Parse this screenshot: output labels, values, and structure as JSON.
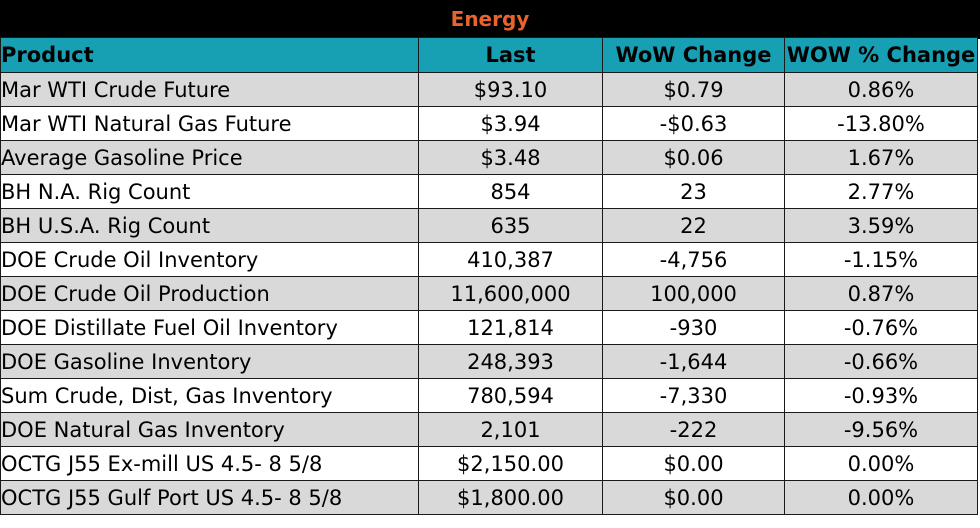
{
  "title": "Energy",
  "columns": [
    "Product",
    "Last",
    "WoW Change",
    "WOW % Change"
  ],
  "rows": [
    [
      "Mar WTI Crude Future",
      "$93.10",
      "$0.79",
      "0.86%"
    ],
    [
      "Mar WTI Natural Gas Future",
      "$3.94",
      "-$0.63",
      "-13.80%"
    ],
    [
      "Average Gasoline Price",
      "$3.48",
      "$0.06",
      "1.67%"
    ],
    [
      "BH N.A. Rig Count",
      "854",
      "23",
      "2.77%"
    ],
    [
      "BH U.S.A. Rig Count",
      "635",
      "22",
      "3.59%"
    ],
    [
      "DOE Crude Oil Inventory",
      "410,387",
      "-4,756",
      "-1.15%"
    ],
    [
      "DOE Crude Oil Production",
      "11,600,000",
      "100,000",
      "0.87%"
    ],
    [
      "DOE Distillate Fuel Oil Inventory",
      "121,814",
      "-930",
      "-0.76%"
    ],
    [
      "DOE Gasoline Inventory",
      "248,393",
      "-1,644",
      "-0.66%"
    ],
    [
      "Sum Crude, Dist, Gas Inventory",
      "780,594",
      "-7,330",
      "-0.93%"
    ],
    [
      "DOE Natural Gas Inventory",
      "2,101",
      "-222",
      "-9.56%"
    ],
    [
      "OCTG J55 Ex-mill US 4.5- 8 5/8",
      "$2,150.00",
      "$0.00",
      "0.00%"
    ],
    [
      "OCTG J55 Gulf Port US 4.5- 8 5/8",
      "$1,800.00",
      "$0.00",
      "0.00%"
    ]
  ],
  "colors": {
    "title_bg": "#000000",
    "title_text": "#e8642c",
    "header_bg": "#17a0b4",
    "odd_row_bg": "#d9d9d9",
    "even_row_bg": "#ffffff"
  }
}
